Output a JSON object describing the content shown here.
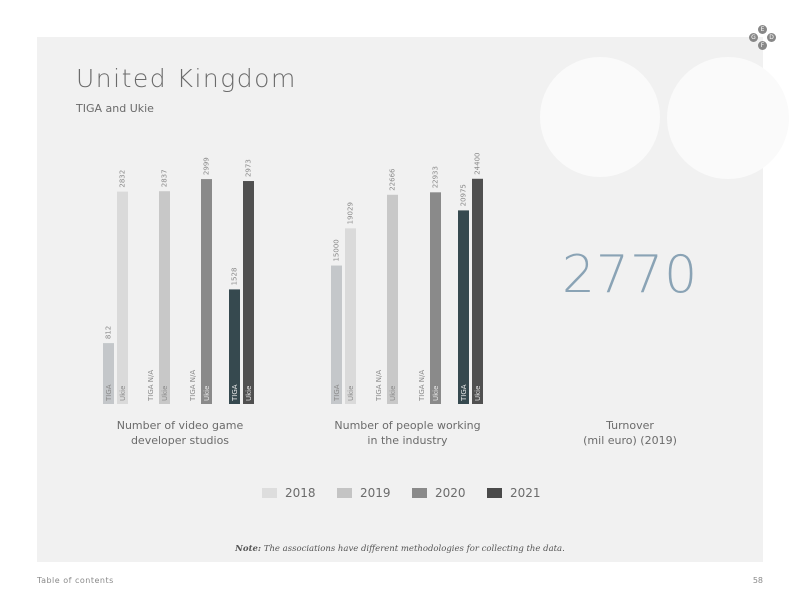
{
  "page": {
    "title": "United Kingdom",
    "subtitle": "TIGA and Ukie",
    "note_bold": "Note:",
    "note_text": " The associations have different methodologies for collecting the data.",
    "footer_left": "Table of contents",
    "page_number": "58",
    "logo_letters": [
      "E",
      "G",
      "D",
      "F"
    ]
  },
  "colors": {
    "2018": "#c4c7ca",
    "2019": "#d2d2d2",
    "2020": "#8a8a8a",
    "2021_tiga": "#36494f",
    "2021_ukie": "#505050",
    "accent": "#8aa3b5"
  },
  "legend": [
    {
      "label": "2018",
      "color": "#dddddd"
    },
    {
      "label": "2019",
      "color": "#c4c4c4"
    },
    {
      "label": "2020",
      "color": "#8a8a8a"
    },
    {
      "label": "2021",
      "color": "#4a4a4a"
    }
  ],
  "chart_data": [
    {
      "type": "bar",
      "title": "Number of video game developer studios",
      "group_label_lines": [
        "Number of video game",
        "developer studios"
      ],
      "ylim": [
        0,
        3200
      ],
      "bars": [
        {
          "year": "2018",
          "association": "TIGA",
          "value": 812,
          "value_label": "812",
          "base_label": "TIGA"
        },
        {
          "year": "2018",
          "association": "Ukie",
          "value": 2832,
          "value_label": "2832",
          "base_label": "Ukie"
        },
        {
          "year": "2019",
          "association": "TIGA",
          "value": null,
          "value_label": "",
          "base_label": "TIGA N/A"
        },
        {
          "year": "2019",
          "association": "Ukie",
          "value": 2837,
          "value_label": "2837",
          "base_label": "Ukie"
        },
        {
          "year": "2020",
          "association": "TIGA",
          "value": null,
          "value_label": "",
          "base_label": "TIGA N/A"
        },
        {
          "year": "2020",
          "association": "Ukie",
          "value": 2999,
          "value_label": "2999",
          "base_label": "Ukie"
        },
        {
          "year": "2021",
          "association": "TIGA",
          "value": 1528,
          "value_label": "1528",
          "base_label": "TIGA"
        },
        {
          "year": "2021",
          "association": "Ukie",
          "value": 2973,
          "value_label": "2973",
          "base_label": "Ukie"
        }
      ]
    },
    {
      "type": "bar",
      "title": "Number of people working in the industry",
      "group_label_lines": [
        "Number of people working",
        "in the industry"
      ],
      "ylim": [
        0,
        26000
      ],
      "bars": [
        {
          "year": "2018",
          "association": "TIGA",
          "value": 15000,
          "value_label": "15000",
          "base_label": "TIGA"
        },
        {
          "year": "2018",
          "association": "Ukie",
          "value": 19029,
          "value_label": "19029",
          "base_label": "Ukie"
        },
        {
          "year": "2019",
          "association": "TIGA",
          "value": null,
          "value_label": "",
          "base_label": "TIGA N/A"
        },
        {
          "year": "2019",
          "association": "Ukie",
          "value": 22666,
          "value_label": "22666",
          "base_label": "Ukie"
        },
        {
          "year": "2020",
          "association": "TIGA",
          "value": null,
          "value_label": "",
          "base_label": "TIGA N/A"
        },
        {
          "year": "2020",
          "association": "Ukie",
          "value": 22933,
          "value_label": "22933",
          "base_label": "Ukie"
        },
        {
          "year": "2021",
          "association": "TIGA",
          "value": 20975,
          "value_label": "20975",
          "base_label": "TIGA"
        },
        {
          "year": "2021",
          "association": "Ukie",
          "value": 24400,
          "value_label": "24400",
          "base_label": "Ukie"
        }
      ]
    }
  ],
  "turnover": {
    "value": "2770",
    "label_lines": [
      "Turnover",
      "(mil euro) (2019)"
    ]
  }
}
